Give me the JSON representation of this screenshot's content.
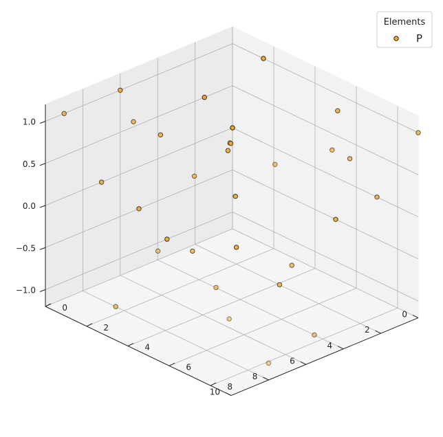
{
  "chart_data": {
    "type": "scatter",
    "projection": "3d",
    "title": "",
    "xlabel": "",
    "ylabel": "",
    "zlabel": "",
    "xlim": [
      0,
      10
    ],
    "ylim": [
      0,
      9
    ],
    "zlim": [
      -1.2,
      1.2
    ],
    "x_ticks": [
      "0",
      "2",
      "4",
      "6",
      "8",
      "10"
    ],
    "y_ticks": [
      "0",
      "2",
      "4",
      "6",
      "8"
    ],
    "z_ticks": [
      "−1.0",
      "−0.5",
      "0.0",
      "0.5",
      "1.0"
    ],
    "grid": true,
    "legend": {
      "title": "Elements",
      "position": "top-right"
    },
    "marker_color": "#f5a623",
    "marker_edge": "#222222",
    "series": [
      {
        "name": "P",
        "points": [
          [
            0,
            0,
            0
          ],
          [
            1.5,
            1.5,
            -0.5
          ],
          [
            3,
            2.5,
            0.3
          ],
          [
            4.5,
            4,
            0.7
          ],
          [
            0,
            1.5,
            1.0
          ],
          [
            1.5,
            0,
            0.5
          ],
          [
            5,
            0,
            -0.5
          ],
          [
            7,
            0,
            0
          ],
          [
            9,
            0,
            1.0
          ],
          [
            0,
            5,
            -0.5
          ],
          [
            0,
            7,
            0
          ],
          [
            0,
            9,
            1.0
          ],
          [
            2,
            2,
            -1.0
          ],
          [
            3,
            5,
            -1.0
          ],
          [
            4,
            6.5,
            -0.5
          ],
          [
            6,
            3.5,
            -0.5
          ],
          [
            7.5,
            6,
            -0.5
          ],
          [
            9,
            8,
            -0.5
          ],
          [
            9,
            2.5,
            -1.0
          ],
          [
            6,
            7.5,
            1.0
          ],
          [
            3.5,
            8,
            1.0
          ],
          [
            5.5,
            1.5,
            0.6
          ],
          [
            7,
            4.5,
            0.6
          ],
          [
            2,
            7.5,
            0.7
          ],
          [
            3.5,
            0,
            -1.0
          ],
          [
            6,
            0,
            1.0
          ],
          [
            9.5,
            5,
            0
          ],
          [
            7.5,
            2,
            1.0
          ],
          [
            5,
            8.5,
            -1.0
          ],
          [
            8,
            9,
            -1.0
          ],
          [
            4,
            3.5,
            0.6
          ],
          [
            1,
            6,
            1.0
          ]
        ]
      }
    ]
  }
}
